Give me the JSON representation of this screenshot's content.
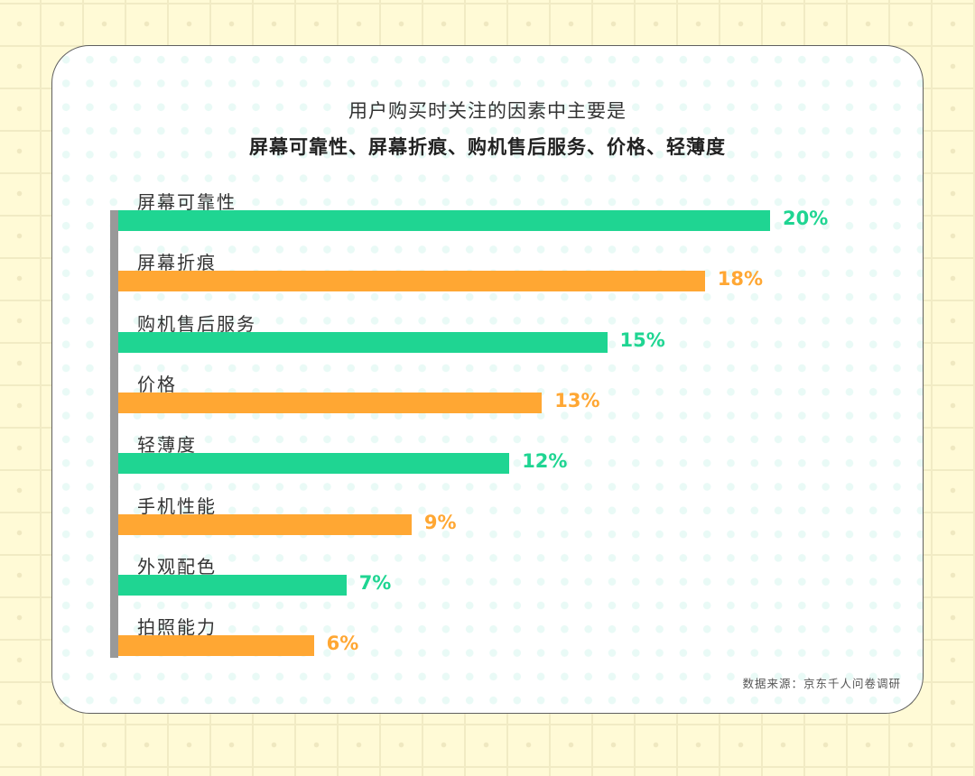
{
  "title": {
    "line1": "用户购买时关注的因素中主要是",
    "line2": "屏幕可靠性、屏幕折痕、购机售后服务、价格、轻薄度"
  },
  "colors": {
    "green": "#1fd592",
    "orange": "#ffa733",
    "axis": "#999999",
    "background": "#fffad6"
  },
  "source": "数据来源：京东千人问卷调研",
  "chart_data": {
    "type": "bar",
    "orientation": "horizontal",
    "title": "用户购买时关注的因素中主要是 屏幕可靠性、屏幕折痕、购机售后服务、价格、轻薄度",
    "categories": [
      "屏幕可靠性",
      "屏幕折痕",
      "购机售后服务",
      "价格",
      "轻薄度",
      "手机性能",
      "外观配色",
      "拍照能力"
    ],
    "values": [
      20,
      18,
      15,
      13,
      12,
      9,
      7,
      6
    ],
    "value_labels": [
      "20%",
      "18%",
      "15%",
      "13%",
      "12%",
      "9%",
      "7%",
      "6%"
    ],
    "bar_colors": [
      "#1fd592",
      "#ffa733",
      "#1fd592",
      "#ffa733",
      "#1fd592",
      "#ffa733",
      "#1fd592",
      "#ffa733"
    ],
    "unit": "%",
    "xlabel": "",
    "ylabel": "",
    "grid": false,
    "legend": null,
    "source": "数据来源：京东千人问卷调研"
  }
}
